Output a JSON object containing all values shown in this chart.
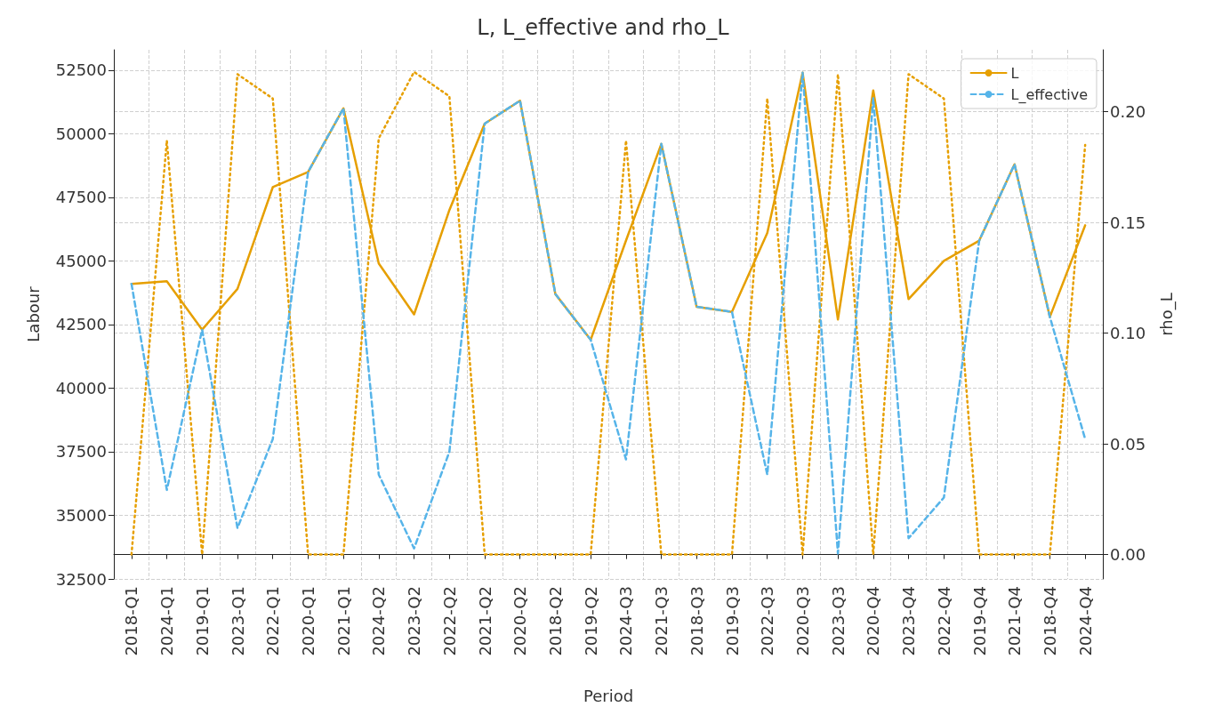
{
  "chart_data": {
    "type": "line",
    "title": "L, L_effective and rho_L",
    "xlabel": "Period",
    "ylabel": "Labour",
    "y2label": "rho_L",
    "categories": [
      "2018-Q1",
      "2024-Q1",
      "2019-Q1",
      "2023-Q1",
      "2022-Q1",
      "2020-Q1",
      "2021-Q1",
      "2024-Q2",
      "2023-Q2",
      "2022-Q2",
      "2021-Q2",
      "2020-Q2",
      "2018-Q2",
      "2019-Q2",
      "2024-Q3",
      "2021-Q3",
      "2018-Q3",
      "2019-Q3",
      "2022-Q3",
      "2020-Q3",
      "2023-Q3",
      "2020-Q4",
      "2023-Q4",
      "2022-Q4",
      "2019-Q4",
      "2021-Q4",
      "2018-Q4",
      "2024-Q4"
    ],
    "series": [
      {
        "name": "L",
        "color": "#e69f00",
        "line_style": "solid",
        "values": [
          44100,
          44200,
          42300,
          43900,
          47900,
          48500,
          51000,
          44900,
          42900,
          47000,
          50400,
          51300,
          43700,
          41900,
          45800,
          49600,
          43200,
          43000,
          46100,
          52400,
          42700,
          51700,
          43500,
          45000,
          45800,
          48800,
          42800,
          46400
        ]
      },
      {
        "name": "L_effective",
        "color": "#56b4e9",
        "line_style": "dashed",
        "values": [
          44100,
          36000,
          42300,
          34500,
          38000,
          48500,
          51000,
          36600,
          33700,
          37500,
          50400,
          51300,
          43700,
          41900,
          37200,
          49600,
          43200,
          43000,
          36600,
          52400,
          33500,
          51400,
          34100,
          35700,
          45800,
          48800,
          42800,
          38000
        ]
      },
      {
        "color": "#e69f00",
        "line_style": "dotted",
        "axis": "y2",
        "values": [
          0,
          0.187,
          0,
          0.217,
          0.206,
          0,
          0,
          0.188,
          0.218,
          0.207,
          0,
          0,
          0,
          0,
          0.187,
          0,
          0,
          0,
          0.206,
          0,
          0.217,
          0,
          0.217,
          0.206,
          0,
          0,
          0,
          0.185
        ]
      }
    ],
    "ylim": [
      32500,
      53300
    ],
    "yticks": [
      32500,
      35000,
      37500,
      40000,
      42500,
      45000,
      47500,
      50000,
      52500
    ],
    "y2lim": [
      -0.011,
      0.228
    ],
    "y2ticks": [
      {
        "value": 0,
        "label": "0.00"
      },
      {
        "value": 0.05,
        "label": "0.05"
      },
      {
        "value": 0.1,
        "label": "0.10"
      },
      {
        "value": 0.15,
        "label": "0.15"
      },
      {
        "value": 0.2,
        "label": "0.20"
      }
    ],
    "grid": true,
    "legend": "top right",
    "marker": "none"
  }
}
